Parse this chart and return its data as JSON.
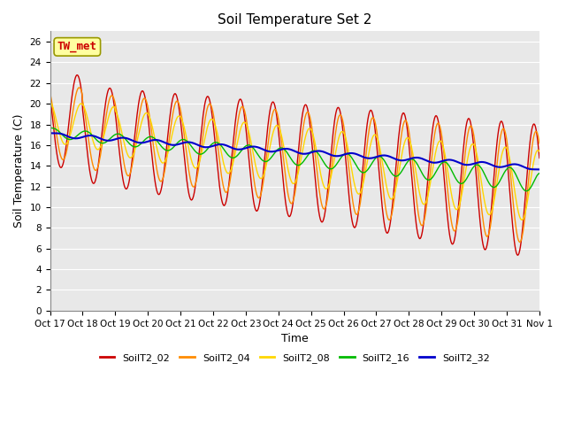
{
  "title": "Soil Temperature Set 2",
  "xlabel": "Time",
  "ylabel": "Soil Temperature (C)",
  "annotation": "TW_met",
  "annotation_color": "#CC0000",
  "annotation_bg": "#FFFFA0",
  "annotation_border": "#999900",
  "ylim": [
    0,
    27
  ],
  "yticks": [
    0,
    2,
    4,
    6,
    8,
    10,
    12,
    14,
    16,
    18,
    20,
    22,
    24,
    26
  ],
  "xtick_labels": [
    "Oct 17",
    "Oct 18",
    "Oct 19",
    "Oct 20",
    "Oct 21",
    "Oct 22",
    "Oct 23",
    "Oct 24",
    "Oct 25",
    "Oct 26",
    "Oct 27",
    "Oct 28",
    "Oct 29",
    "Oct 30",
    "Oct 31",
    "Nov 1"
  ],
  "background_color": "#E8E8E8",
  "plot_bg": "#E8E8E8",
  "fig_bg": "#FFFFFF",
  "series_colors": [
    "#CC0000",
    "#FF8C00",
    "#FFD700",
    "#00BB00",
    "#0000CC"
  ],
  "series_names": [
    "SoilT2_02",
    "SoilT2_04",
    "SoilT2_08",
    "SoilT2_16",
    "SoilT2_32"
  ],
  "series_lw": [
    1.0,
    1.0,
    1.0,
    1.0,
    1.5
  ],
  "n_days": 15,
  "pts_per_day": 48,
  "grid_color": "#FFFFFF",
  "title_fontsize": 11,
  "tick_fontsize": 7.5,
  "label_fontsize": 9,
  "legend_fontsize": 8
}
